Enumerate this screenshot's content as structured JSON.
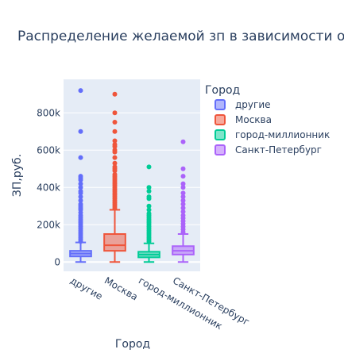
{
  "chart_data": {
    "type": "box",
    "title": "Распределение желаемой зп в зависимости от",
    "xlabel": "Город",
    "ylabel": "ЗП,руб.",
    "ylim": [
      -50000,
      980000
    ],
    "yticks": [
      0,
      200000,
      400000,
      600000,
      800000
    ],
    "ytick_labels": [
      "0",
      "200k",
      "400k",
      "600k",
      "800k"
    ],
    "grid": true,
    "legend_title": "Город",
    "legend_position": "top-right",
    "categories": [
      "другие",
      "Москва",
      "город-миллионник",
      "Санкт-Петербург"
    ],
    "series": [
      {
        "name": "другие",
        "color": "#636efa",
        "min": 0,
        "q1": 30000,
        "median": 45000,
        "q3": 60000,
        "max": 105000,
        "outliers": [
          920000,
          700000,
          560000,
          460000,
          450000,
          440000,
          420000,
          400000,
          380000,
          370000,
          350000,
          330000,
          310000,
          300000,
          290000,
          280000,
          265000,
          250000,
          240000,
          230000,
          220000,
          210000,
          200000,
          190000,
          180000,
          170000,
          160000,
          150000,
          140000,
          130000,
          120000,
          110000
        ]
      },
      {
        "name": "Москва",
        "color": "#ef553b",
        "min": 0,
        "q1": 60000,
        "median": 90000,
        "q3": 150000,
        "max": 280000,
        "outliers": [
          900000,
          800000,
          750000,
          700000,
          650000,
          630000,
          620000,
          600000,
          590000,
          560000,
          530000,
          510000,
          500000,
          490000,
          470000,
          460000,
          450000,
          440000,
          430000,
          420000,
          410000,
          400000,
          390000,
          380000,
          370000,
          360000,
          350000,
          340000,
          330000,
          320000,
          310000,
          300000,
          290000
        ]
      },
      {
        "name": "город-миллионник",
        "color": "#00cc96",
        "min": 0,
        "q1": 25000,
        "median": 40000,
        "q3": 55000,
        "max": 100000,
        "outliers": [
          510000,
          400000,
          380000,
          350000,
          340000,
          300000,
          280000,
          260000,
          250000,
          240000,
          230000,
          220000,
          210000,
          200000,
          190000,
          180000,
          170000,
          160000,
          150000,
          140000,
          130000,
          120000,
          110000
        ]
      },
      {
        "name": "Санкт-Петербург",
        "color": "#ab63fa",
        "min": 0,
        "q1": 40000,
        "median": 60000,
        "q3": 85000,
        "max": 150000,
        "outliers": [
          645000,
          500000,
          460000,
          420000,
          400000,
          370000,
          350000,
          330000,
          310000,
          290000,
          270000,
          250000,
          235000,
          220000,
          205000,
          190000,
          175000,
          160000
        ]
      }
    ]
  }
}
